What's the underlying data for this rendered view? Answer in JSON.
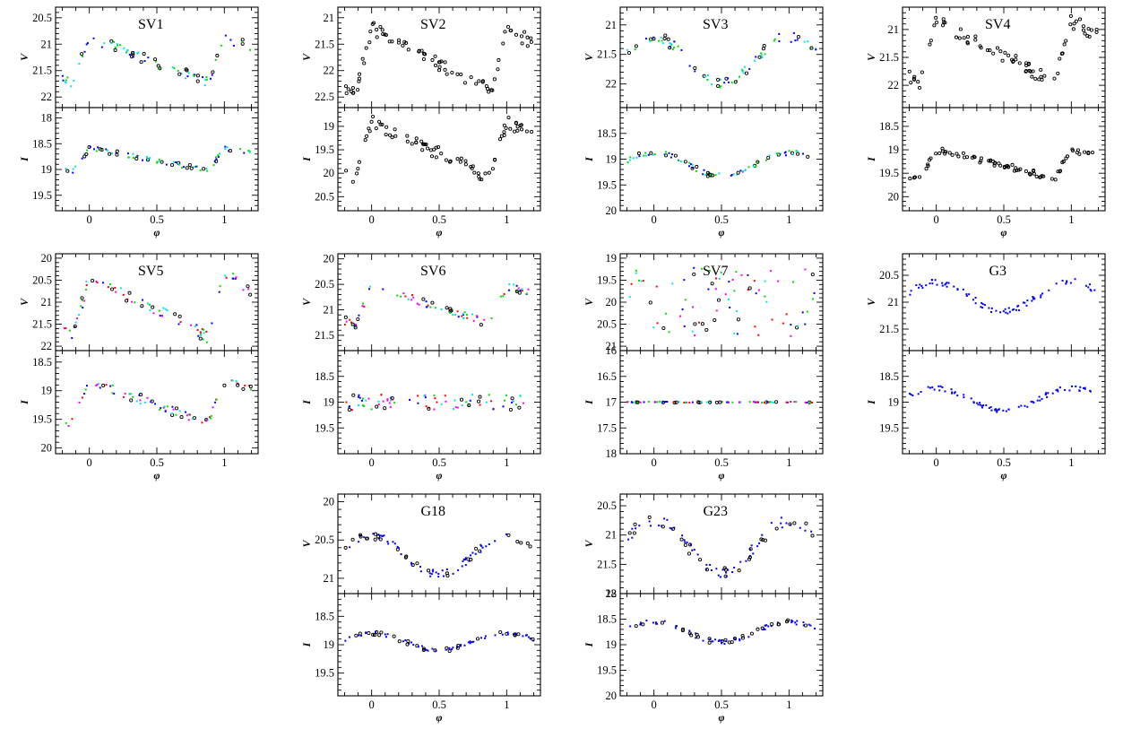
{
  "chart_data": [
    {
      "id": "SV1",
      "title": "SV1",
      "type": "scatter",
      "xlabel": "φ",
      "xlim": [
        -0.25,
        1.25
      ],
      "xticks": [
        0,
        0.5,
        1
      ],
      "top": {
        "ylabel": "V",
        "ylim": [
          22.2,
          20.3
        ],
        "yticks": [
          20.5,
          21,
          21.5,
          22
        ],
        "mean": 21.3,
        "amp": 0.85,
        "shape": "saw"
      },
      "bottom": {
        "ylabel": "I",
        "ylim": [
          19.8,
          17.8
        ],
        "yticks": [
          18,
          18.5,
          19,
          19.5
        ],
        "mean": 18.8,
        "amp": 0.45,
        "shape": "saw"
      },
      "markers": [
        "mix4"
      ]
    },
    {
      "id": "SV2",
      "title": "SV2",
      "type": "scatter",
      "xlabel": "φ",
      "xlim": [
        -0.25,
        1.25
      ],
      "xticks": [
        0,
        0.5,
        1
      ],
      "top": {
        "ylabel": "V",
        "ylim": [
          22.7,
          20.8
        ],
        "yticks": [
          21,
          21.5,
          22,
          22.5
        ],
        "mean": 21.8,
        "amp": 1.2,
        "shape": "saw"
      },
      "bottom": {
        "ylabel": "I",
        "ylim": [
          20.8,
          18.6
        ],
        "yticks": [
          19,
          19.5,
          20,
          20.5
        ],
        "mean": 19.5,
        "amp": 1.2,
        "shape": "saw"
      },
      "markers": [
        "black"
      ]
    },
    {
      "id": "SV3",
      "title": "SV3",
      "type": "scatter",
      "xlabel": "φ",
      "xlim": [
        -0.25,
        1.25
      ],
      "xticks": [
        0,
        0.5,
        1
      ],
      "top": {
        "ylabel": "V",
        "ylim": [
          22.4,
          20.7
        ],
        "yticks": [
          21,
          21.5,
          22
        ],
        "mean": 21.6,
        "amp": 0.8,
        "shape": "hump"
      },
      "bottom": {
        "ylabel": "I",
        "ylim": [
          20,
          18
        ],
        "yticks": [
          18.5,
          19,
          19.5,
          20
        ],
        "mean": 19.1,
        "amp": 0.45,
        "shape": "hump"
      },
      "markers": [
        "mix4"
      ]
    },
    {
      "id": "SV4",
      "title": "SV4",
      "type": "scatter",
      "xlabel": "φ",
      "xlim": [
        -0.25,
        1.25
      ],
      "xticks": [
        0,
        0.5,
        1
      ],
      "top": {
        "ylabel": "V",
        "ylim": [
          22.4,
          20.6
        ],
        "yticks": [
          21,
          21.5,
          22
        ],
        "mean": 21.4,
        "amp": 1.1,
        "shape": "saw"
      },
      "bottom": {
        "ylabel": "I",
        "ylim": [
          20.3,
          18.1
        ],
        "yticks": [
          18.5,
          19,
          19.5,
          20
        ],
        "mean": 19.3,
        "amp": 0.6,
        "shape": "saw"
      },
      "markers": [
        "black"
      ]
    },
    {
      "id": "SV5",
      "title": "SV5",
      "type": "scatter",
      "xlabel": "φ",
      "xlim": [
        -0.25,
        1.25
      ],
      "xticks": [
        0,
        0.5,
        1
      ],
      "top": {
        "ylabel": "V",
        "ylim": [
          22.1,
          19.9
        ],
        "yticks": [
          20,
          20.5,
          21,
          21.5,
          22
        ],
        "mean": 21.1,
        "amp": 1.4,
        "shape": "saw"
      },
      "bottom": {
        "ylabel": "I",
        "ylim": [
          20.1,
          18.3
        ],
        "yticks": [
          18.5,
          19,
          19.5,
          20
        ],
        "mean": 19.2,
        "amp": 0.75,
        "shape": "saw"
      },
      "markers": [
        "mix5"
      ]
    },
    {
      "id": "SV6",
      "title": "SV6",
      "type": "scatter",
      "xlabel": "φ",
      "xlim": [
        -0.25,
        1.25
      ],
      "xticks": [
        0,
        0.5,
        1
      ],
      "top": {
        "ylabel": "V",
        "ylim": [
          21.8,
          19.9
        ],
        "yticks": [
          20,
          20.5,
          21,
          21.5
        ],
        "mean": 20.9,
        "amp": 0.75,
        "shape": "saw"
      },
      "bottom": {
        "ylabel": "I",
        "ylim": [
          20,
          18
        ],
        "yticks": [
          18.5,
          19,
          19.5
        ],
        "mean": 19.0,
        "amp": 0.15,
        "shape": "flat"
      },
      "markers": [
        "mix5"
      ]
    },
    {
      "id": "SV7",
      "title": "SV7",
      "type": "scatter",
      "xlabel": "φ",
      "xlim": [
        -0.25,
        1.25
      ],
      "xticks": [
        0,
        0.5,
        1
      ],
      "top": {
        "ylabel": "V",
        "ylim": [
          21.1,
          18.9
        ],
        "yticks": [
          19,
          19.5,
          20,
          20.5,
          21
        ],
        "mean": 20.0,
        "amp": 0.4,
        "shape": "noise"
      },
      "bottom": {
        "ylabel": "I",
        "ylim": [
          18,
          16
        ],
        "yticks": [
          16,
          16.5,
          17,
          17.5,
          18
        ],
        "mean": 17.0,
        "amp": 0.01,
        "shape": "flat"
      },
      "markers": [
        "mix5"
      ]
    },
    {
      "id": "G3",
      "title": "G3",
      "type": "scatter",
      "xlabel": "φ",
      "xlim": [
        -0.25,
        1.25
      ],
      "xticks": [
        0,
        0.5,
        1
      ],
      "top": {
        "ylabel": "V",
        "ylim": [
          21.9,
          20.1
        ],
        "yticks": [
          20.5,
          21,
          21.5
        ],
        "mean": 20.9,
        "amp": 0.55,
        "shape": "hump"
      },
      "bottom": {
        "ylabel": "I",
        "ylim": [
          20,
          18
        ],
        "yticks": [
          18.5,
          19,
          19.5
        ],
        "mean": 18.95,
        "amp": 0.45,
        "shape": "hump"
      },
      "markers": [
        "blue"
      ]
    },
    {
      "id": "G18",
      "title": "G18",
      "type": "scatter",
      "xlabel": "φ",
      "xlim": [
        -0.25,
        1.25
      ],
      "xticks": [
        0,
        0.5,
        1
      ],
      "top": {
        "ylabel": "V",
        "ylim": [
          21.2,
          19.9
        ],
        "yticks": [
          20,
          20.5,
          21
        ],
        "mean": 20.7,
        "amp": 0.5,
        "shape": "hump"
      },
      "bottom": {
        "ylabel": "I",
        "ylim": [
          19.9,
          18.1
        ],
        "yticks": [
          18.5,
          19,
          19.5
        ],
        "mean": 18.95,
        "amp": 0.3,
        "shape": "hump"
      },
      "markers": [
        "mixbk"
      ]
    },
    {
      "id": "G23",
      "title": "G23",
      "type": "scatter",
      "xlabel": "φ",
      "xlim": [
        -0.25,
        1.25
      ],
      "xticks": [
        0,
        0.5,
        1
      ],
      "top": {
        "ylabel": "V",
        "ylim": [
          22,
          20.3
        ],
        "yticks": [
          20.5,
          21,
          21.5,
          22
        ],
        "mean": 21.2,
        "amp": 0.9,
        "shape": "hump"
      },
      "bottom": {
        "ylabel": "I",
        "ylim": [
          20,
          18
        ],
        "yticks": [
          18,
          18.5,
          19,
          19.5,
          20
        ],
        "mean": 18.75,
        "amp": 0.4,
        "shape": "hump"
      },
      "markers": [
        "mixbk"
      ]
    }
  ],
  "colors": {
    "black": "#000000",
    "blue": "#0000ff",
    "green": "#00dd00",
    "cyan": "#00e5e5",
    "red": "#ff0000",
    "magenta": "#ff00ff",
    "frame": "#000000"
  }
}
